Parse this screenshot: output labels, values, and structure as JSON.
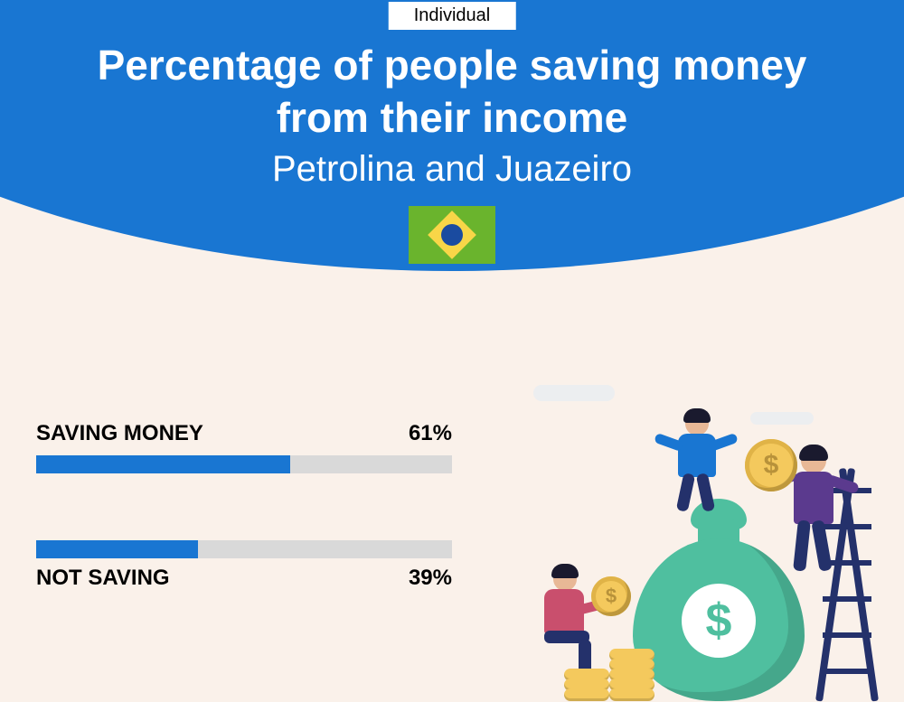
{
  "badge": "Individual",
  "title_l1": "Percentage of people saving money",
  "title_l2": "from their income",
  "subtitle": "Petrolina and Juazeiro",
  "colors": {
    "primary": "#1976d2",
    "track": "#d9d9d9",
    "bg": "#faf1ea",
    "bag": "#4fbf9f",
    "coin": "#f4c95d",
    "navy": "#24316b"
  },
  "bars": {
    "saving": {
      "label": "SAVING MONEY",
      "value": 61,
      "display": "61%",
      "fill_color": "#1976d2"
    },
    "notsaving": {
      "label": "NOT SAVING",
      "value": 39,
      "display": "39%",
      "fill_color": "#1976d2"
    }
  }
}
